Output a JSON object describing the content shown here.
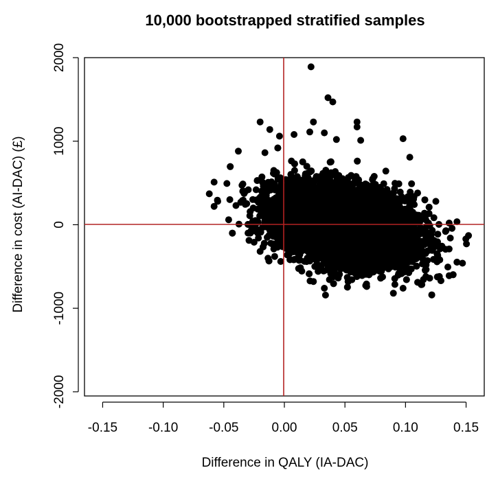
{
  "chart_data": {
    "type": "scatter",
    "title": "10,000 bootstrapped stratified samples",
    "xlabel": "Difference in QALY (IA-DAC)",
    "ylabel": "Difference in cost (AI-DAC) (£)",
    "xlim": [
      -0.165,
      0.165
    ],
    "ylim": [
      -2050,
      2000
    ],
    "x_ticks": [
      -0.15,
      -0.1,
      -0.05,
      0.0,
      0.05,
      0.1,
      0.15
    ],
    "x_tick_labels": [
      "-0.15",
      "-0.10",
      "-0.05",
      "0.00",
      "0.05",
      "0.10",
      "0.15"
    ],
    "y_ticks": [
      -2000,
      -1000,
      0,
      1000,
      2000
    ],
    "y_tick_labels": [
      "-2000",
      "-1000",
      "0",
      "1000",
      "2000"
    ],
    "reference_lines": {
      "x": 0,
      "y": 0,
      "color": "#b22222"
    },
    "grid": false,
    "point_color": "#000000",
    "n_points": 10000,
    "bulk_distribution": {
      "x_mean": 0.05,
      "x_sd": 0.028,
      "y_mean": 0,
      "y_sd": 230,
      "correlation": -0.3
    },
    "series": [
      {
        "values": [
          {
            "x": 0.022,
            "y": 1890
          },
          {
            "x": 0.036,
            "y": 1520
          },
          {
            "x": 0.04,
            "y": 1470
          },
          {
            "x": -0.02,
            "y": 1230
          },
          {
            "x": 0.024,
            "y": 1230
          },
          {
            "x": 0.06,
            "y": 1230
          },
          {
            "x": 0.06,
            "y": 1170
          },
          {
            "x": -0.012,
            "y": 1140
          },
          {
            "x": 0.021,
            "y": 1110
          },
          {
            "x": 0.033,
            "y": 1100
          },
          {
            "x": -0.004,
            "y": 1060
          },
          {
            "x": 0.008,
            "y": 1080
          },
          {
            "x": 0.098,
            "y": 1030
          },
          {
            "x": 0.043,
            "y": 1020
          },
          {
            "x": 0.063,
            "y": 1010
          },
          {
            "x": -0.038,
            "y": 880
          },
          {
            "x": -0.058,
            "y": 510
          },
          {
            "x": -0.062,
            "y": 370
          },
          {
            "x": -0.055,
            "y": 280
          },
          {
            "x": -0.058,
            "y": 220
          },
          {
            "x": -0.045,
            "y": 300
          },
          {
            "x": -0.046,
            "y": 60
          },
          {
            "x": -0.04,
            "y": 230
          },
          {
            "x": -0.03,
            "y": -100
          },
          {
            "x": -0.025,
            "y": -210
          },
          {
            "x": -0.02,
            "y": -320
          },
          {
            "x": -0.008,
            "y": -380
          },
          {
            "x": -0.003,
            "y": -440
          },
          {
            "x": 0.024,
            "y": -680
          },
          {
            "x": 0.033,
            "y": -760
          },
          {
            "x": 0.068,
            "y": -740
          },
          {
            "x": 0.09,
            "y": -820
          },
          {
            "x": 0.098,
            "y": -760
          },
          {
            "x": 0.11,
            "y": -690
          },
          {
            "x": 0.12,
            "y": -640
          },
          {
            "x": 0.128,
            "y": -620
          },
          {
            "x": 0.136,
            "y": -610
          },
          {
            "x": 0.147,
            "y": -460
          },
          {
            "x": 0.136,
            "y": -290
          },
          {
            "x": 0.137,
            "y": -160
          },
          {
            "x": 0.133,
            "y": -80
          },
          {
            "x": 0.136,
            "y": 20
          },
          {
            "x": 0.152,
            "y": -130
          },
          {
            "x": 0.125,
            "y": 280
          },
          {
            "x": 0.11,
            "y": 380
          },
          {
            "x": 0.105,
            "y": 490
          }
        ]
      }
    ]
  }
}
